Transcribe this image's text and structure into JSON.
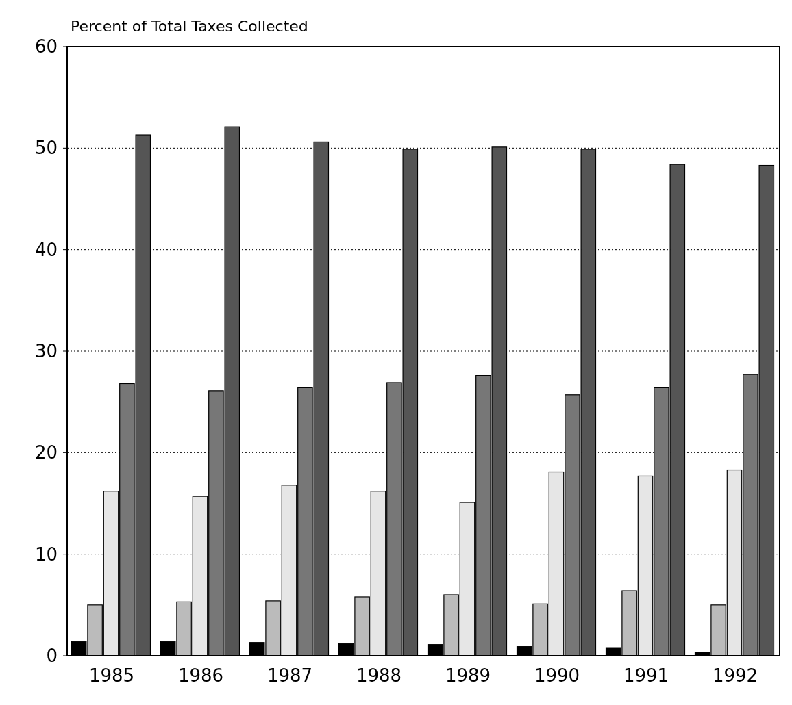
{
  "chart_data": {
    "type": "bar",
    "ylabel": "Percent of Total Taxes Collected",
    "categories": [
      "1985",
      "1986",
      "1987",
      "1988",
      "1989",
      "1990",
      "1991",
      "1992"
    ],
    "series": [
      {
        "color": "#000000",
        "values": [
          1.4,
          1.4,
          1.3,
          1.2,
          1.1,
          0.9,
          0.8,
          0.3
        ]
      },
      {
        "color": "#bbbbbb",
        "values": [
          5.0,
          5.3,
          5.4,
          5.8,
          6.0,
          5.1,
          6.4,
          5.0
        ]
      },
      {
        "color": "#e6e6e6",
        "values": [
          16.2,
          15.7,
          16.8,
          16.2,
          15.1,
          18.1,
          17.7,
          18.3
        ]
      },
      {
        "color": "#777777",
        "values": [
          26.8,
          26.1,
          26.4,
          26.9,
          27.6,
          25.7,
          26.4,
          27.7
        ]
      },
      {
        "color": "#555555",
        "values": [
          51.3,
          52.1,
          50.6,
          49.9,
          50.1,
          49.9,
          48.4,
          48.3
        ]
      }
    ],
    "ylim": [
      0,
      60
    ],
    "yticks": [
      0,
      10,
      20,
      30,
      40,
      50,
      60
    ],
    "grid": "y"
  }
}
